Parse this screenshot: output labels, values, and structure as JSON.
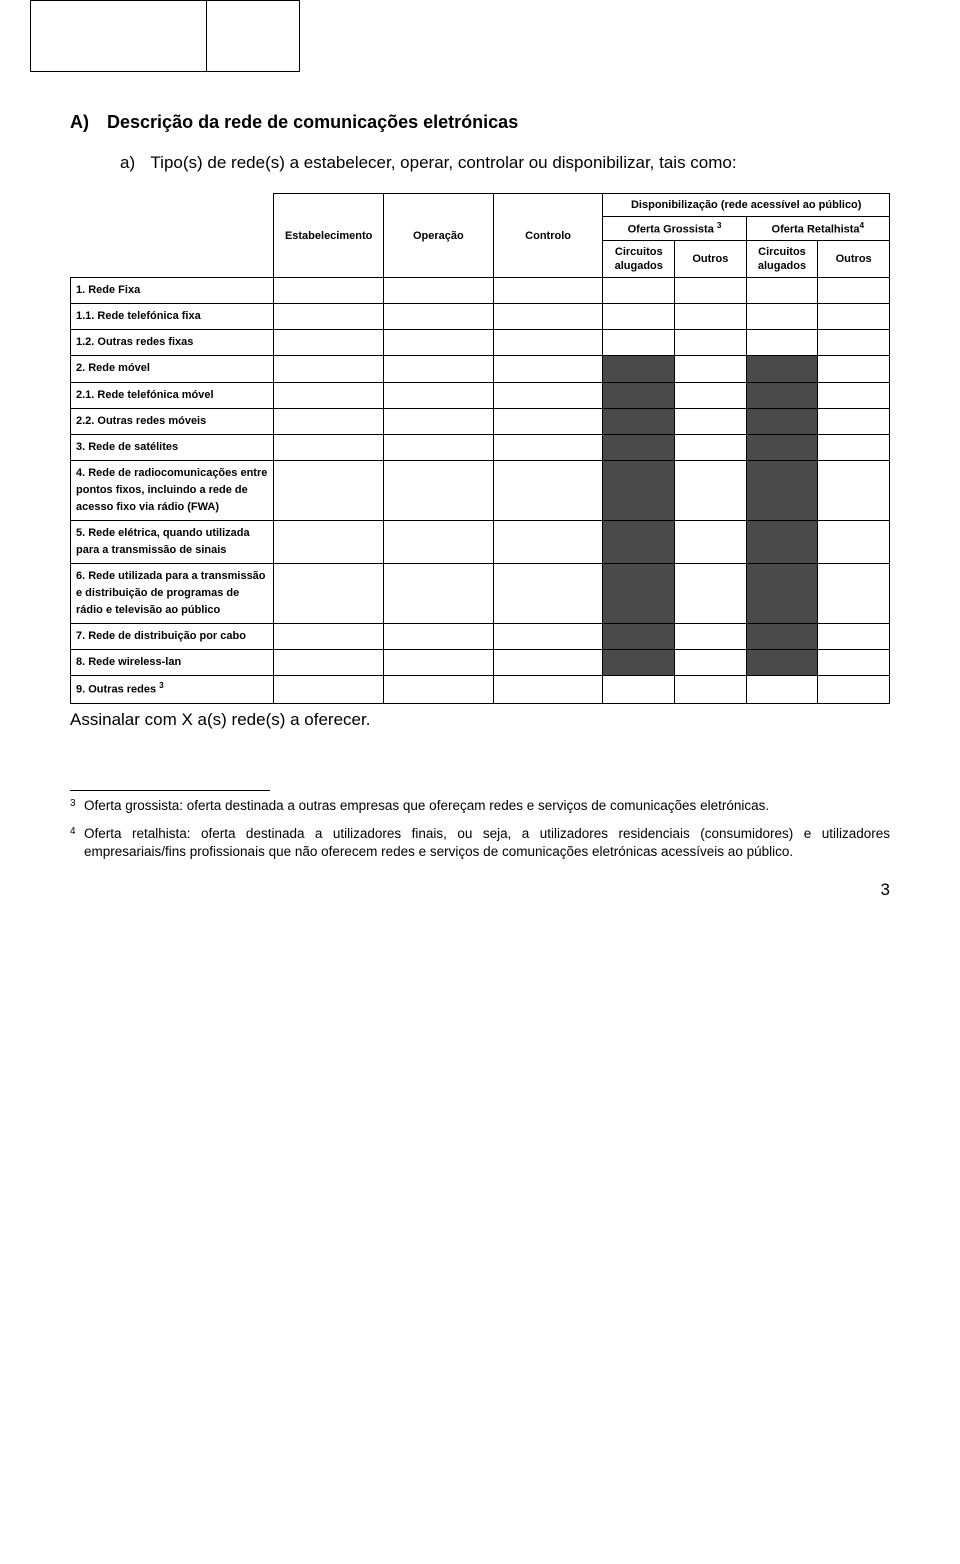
{
  "section": {
    "heading_letter": "A)",
    "heading_text": "Descrição da rede de comunicações eletrónicas",
    "sub_letter": "a)",
    "sub_text": "Tipo(s) de rede(s) a estabelecer, operar, controlar ou disponibilizar, tais como:"
  },
  "table": {
    "disp_header": "Disponibilização (rede acessível ao público)",
    "cols": {
      "estabelecimento": "Estabelecimento",
      "operacao": "Operação",
      "controlo": "Controlo",
      "oferta_grossista": "Oferta Grossista",
      "oferta_grossista_sup": "3",
      "oferta_retalhista": "Oferta Retalhista",
      "oferta_retalhista_sup": "4",
      "circuitos_alugados": "Circuitos alugados",
      "outros": "Outros"
    },
    "dark_color": "#4a4a4a",
    "rows": [
      {
        "label": "1. Rede Fixa",
        "dark": []
      },
      {
        "label": "1.1. Rede telefónica fixa",
        "dark": []
      },
      {
        "label": "1.2. Outras redes fixas",
        "dark": []
      },
      {
        "label": "2. Rede móvel",
        "dark": [
          4,
          6
        ]
      },
      {
        "label": "2.1. Rede  telefónica móvel",
        "dark": [
          4,
          6
        ]
      },
      {
        "label": "2.2. Outras redes móveis",
        "dark": [
          4,
          6
        ]
      },
      {
        "label": "3. Rede de satélites",
        "dark": [
          4,
          6
        ]
      },
      {
        "label": "4. Rede de radiocomunicações entre pontos fixos, incluindo a rede de acesso fixo via rádio (FWA)",
        "dark": [
          4,
          6
        ]
      },
      {
        "label": "5. Rede elétrica, quando utilizada para a transmissão de sinais",
        "dark": [
          4,
          6
        ]
      },
      {
        "label": "6. Rede utilizada para a transmissão e distribuição de programas de rádio e televisão ao público",
        "dark": [
          4,
          6
        ]
      },
      {
        "label": "7. Rede de distribuição por cabo",
        "dark": [
          4,
          6
        ]
      },
      {
        "label": "8. Rede wireless-lan",
        "dark": [
          4,
          6
        ]
      },
      {
        "label": "9. Outras redes",
        "sup": "3",
        "dark": []
      }
    ],
    "min_cell_height": 24
  },
  "instruction": "Assinalar com X a(s) rede(s) a oferecer.",
  "footnotes": [
    {
      "num": "3",
      "text": "Oferta grossista: oferta destinada a outras empresas que ofereçam redes e serviços de comunicações eletrónicas."
    },
    {
      "num": "4",
      "text": "Oferta retalhista: oferta destinada a utilizadores finais, ou seja, a utilizadores residenciais (consumidores) e utilizadores empresariais/fins profissionais que não oferecem redes e serviços de comunicações eletrónicas acessíveis ao público."
    }
  ],
  "page_number": "3"
}
